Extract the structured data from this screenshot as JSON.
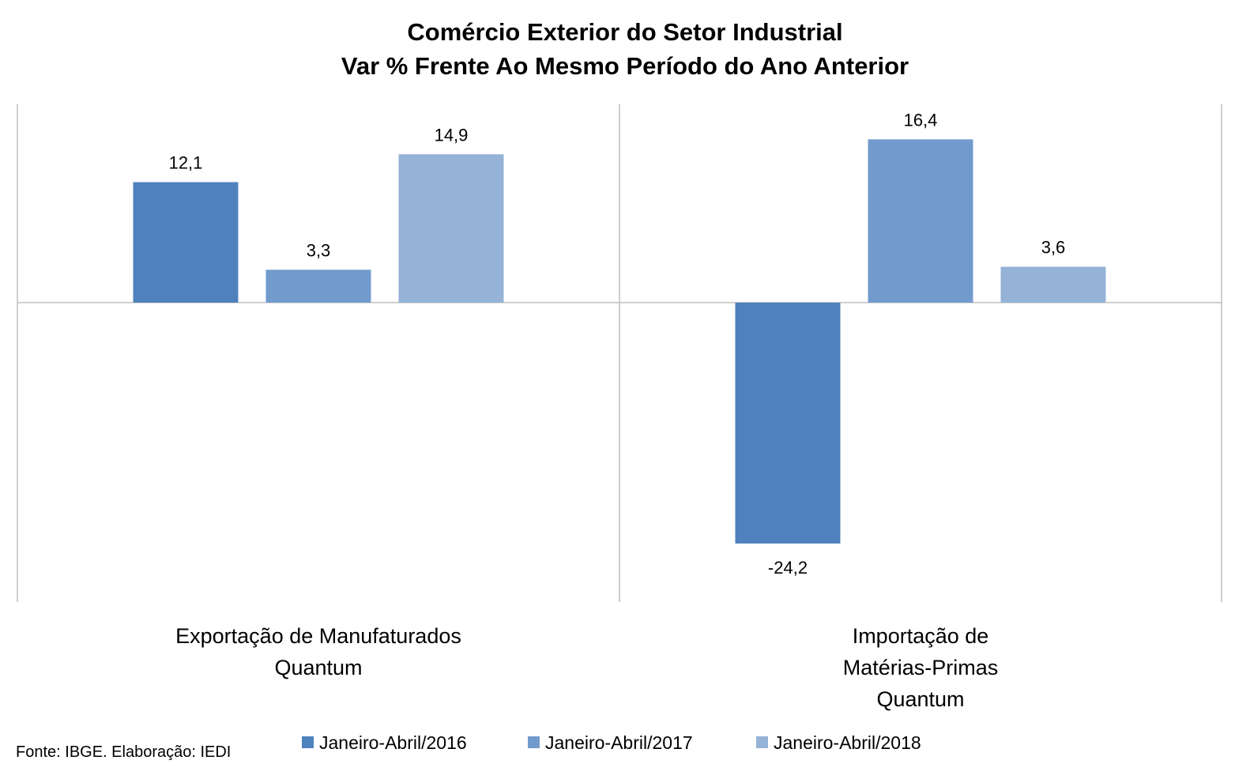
{
  "chart_data": {
    "type": "bar",
    "title": [
      "Comércio Exterior do Setor Industrial",
      "Var % Frente Ao Mesmo Período do Ano Anterior"
    ],
    "categories": [
      [
        "Exportação de Manufaturados",
        "Quantum"
      ],
      [
        "Importação de",
        "Matérias-Primas",
        "Quantum"
      ]
    ],
    "series": [
      {
        "name": "Janeiro-Abril/2016",
        "color": "#4f81bd",
        "values": [
          12.1,
          -24.2
        ],
        "labels": [
          "12,1",
          "-24,2"
        ]
      },
      {
        "name": "Janeiro-Abril/2017",
        "color": "#729bcd",
        "values": [
          3.3,
          16.4
        ],
        "labels": [
          "3,3",
          "16,4"
        ]
      },
      {
        "name": "Janeiro-Abril/2018",
        "color": "#95b3d7",
        "values": [
          14.9,
          3.6
        ],
        "labels": [
          "14,9",
          "3,6"
        ]
      }
    ],
    "ylim": [
      -30,
      20
    ],
    "grid": false,
    "legend": "bottom",
    "source": "Fonte: IBGE. Elaboração: IEDI"
  }
}
